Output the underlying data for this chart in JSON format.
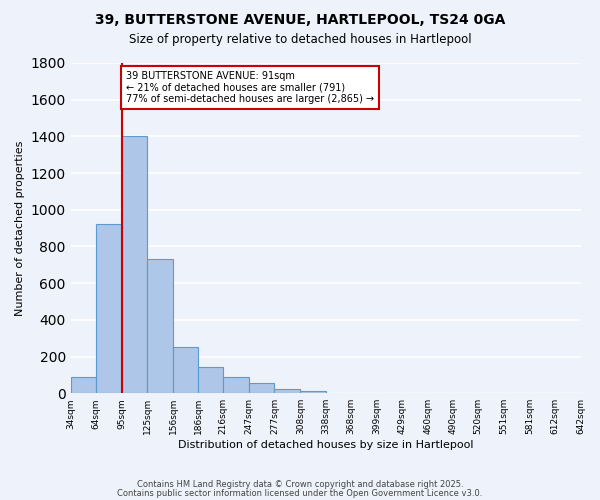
{
  "title1": "39, BUTTERSTONE AVENUE, HARTLEPOOL, TS24 0GA",
  "title2": "Size of property relative to detached houses in Hartlepool",
  "xlabel": "Distribution of detached houses by size in Hartlepool",
  "ylabel": "Number of detached properties",
  "bin_labels": [
    "34sqm",
    "64sqm",
    "95sqm",
    "125sqm",
    "156sqm",
    "186sqm",
    "216sqm",
    "247sqm",
    "277sqm",
    "308sqm",
    "338sqm",
    "368sqm",
    "399sqm",
    "429sqm",
    "460sqm",
    "490sqm",
    "520sqm",
    "551sqm",
    "581sqm",
    "612sqm",
    "642sqm"
  ],
  "bin_edges": [
    34,
    64,
    95,
    125,
    156,
    186,
    216,
    247,
    277,
    308,
    338,
    368,
    399,
    429,
    460,
    490,
    520,
    551,
    581,
    612,
    642
  ],
  "bar_values": [
    90,
    920,
    1400,
    730,
    250,
    145,
    90,
    55,
    25,
    10,
    3,
    0,
    0,
    0,
    0,
    0,
    0,
    0,
    0,
    0
  ],
  "bar_color": "#aec6e8",
  "bar_edge_color": "#5b9bd5",
  "vline_x": 95,
  "vline_color": "#cc0000",
  "annotation_title": "39 BUTTERSTONE AVENUE: 91sqm",
  "annotation_line1": "← 21% of detached houses are smaller (791)",
  "annotation_line2": "77% of semi-detached houses are larger (2,865) →",
  "annotation_box_color": "#ffffff",
  "annotation_box_edge": "#cc0000",
  "ylim": [
    0,
    1800
  ],
  "yticks": [
    0,
    200,
    400,
    600,
    800,
    1000,
    1200,
    1400,
    1600,
    1800
  ],
  "background_color": "#eef2fa",
  "grid_color": "#ffffff",
  "footer1": "Contains HM Land Registry data © Crown copyright and database right 2025.",
  "footer2": "Contains public sector information licensed under the Open Government Licence v3.0."
}
